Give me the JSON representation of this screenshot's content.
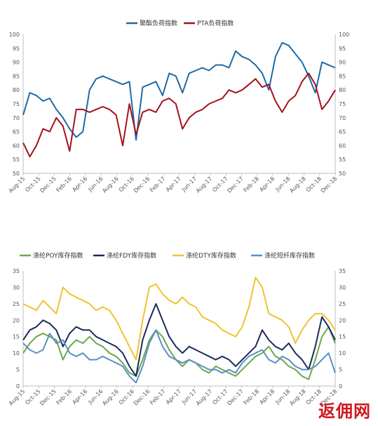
{
  "chart_data": [
    {
      "type": "line",
      "ylim": [
        50,
        100
      ],
      "yticks": [
        50,
        55,
        60,
        65,
        70,
        75,
        80,
        85,
        90,
        95,
        100
      ],
      "x_tick_labels": [
        "Aug-15",
        "Oct-15",
        "Dec-15",
        "Feb-16",
        "Apr-16",
        "Jun-16",
        "Aug-16",
        "Oct-16",
        "Dec-16",
        "Feb-17",
        "Apr-17",
        "Jun-17",
        "Aug-17",
        "Oct-17",
        "Dec-17",
        "Feb-18",
        "Apr-18",
        "Jun-18",
        "Aug-18",
        "Oct-18",
        "Dec-18"
      ],
      "legend_position": "top-center",
      "series": [
        {
          "name": "聚酯负荷指数",
          "color": "#1f6aa5",
          "values": [
            71,
            79,
            78,
            76,
            77,
            73,
            70,
            66,
            63,
            65,
            80,
            84,
            85,
            84,
            83,
            82,
            83,
            62,
            81,
            82,
            83,
            78,
            86,
            85,
            79,
            86,
            87,
            88,
            87,
            89,
            89,
            88,
            94,
            92,
            91,
            89,
            86,
            80,
            92,
            97,
            96,
            93,
            90,
            85,
            79,
            90,
            89,
            88
          ]
        },
        {
          "name": "PTA负荷指数",
          "color": "#a3121c",
          "values": [
            61,
            56,
            60,
            66,
            65,
            70,
            67,
            58,
            73,
            73,
            72,
            73,
            74,
            73,
            71,
            60,
            75,
            64,
            72,
            73,
            72,
            76,
            77,
            75,
            66,
            70,
            72,
            73,
            75,
            76,
            77,
            80,
            79,
            80,
            82,
            84,
            81,
            82,
            76,
            72,
            76,
            78,
            83,
            86,
            82,
            73,
            76,
            80
          ]
        }
      ]
    },
    {
      "type": "line",
      "ylim": [
        0,
        35
      ],
      "yticks": [
        0,
        5,
        10,
        15,
        20,
        25,
        30,
        35
      ],
      "x_tick_labels": [
        "Aug-15",
        "Oct-15",
        "Dec-15",
        "Feb-16",
        "Apr-16",
        "Jun-16",
        "Aug-16",
        "Oct-16",
        "Dec-16",
        "Feb-17",
        "Apr-17",
        "Jun-17",
        "Aug-17",
        "Oct-17",
        "Dec-17",
        "Feb-18",
        "Apr-18",
        "Jun-18",
        "Aug-18",
        "Oct-18",
        "Dec-18"
      ],
      "legend_position": "top",
      "series": [
        {
          "name": "涤纶POY库存指数",
          "color": "#6aa84f",
          "values": [
            10,
            13,
            15,
            16,
            15,
            14,
            8,
            12,
            14,
            13,
            15,
            13,
            12,
            10,
            9,
            7,
            4,
            3,
            8,
            14,
            17,
            15,
            11,
            8,
            6,
            8,
            7,
            5,
            4,
            6,
            5,
            4,
            3,
            5,
            7,
            9,
            10,
            12,
            9,
            8,
            6,
            5,
            3,
            2,
            8,
            15,
            18,
            13
          ]
        },
        {
          "name": "涤纶FDY库存指数",
          "color": "#1c2b5a",
          "values": [
            14,
            17,
            18,
            20,
            19,
            17,
            12,
            16,
            18,
            17,
            17,
            15,
            14,
            13,
            12,
            10,
            6,
            3,
            14,
            20,
            25,
            20,
            15,
            12,
            10,
            12,
            11,
            10,
            9,
            8,
            9,
            8,
            6,
            8,
            10,
            12,
            17,
            14,
            12,
            11,
            13,
            10,
            8,
            5,
            12,
            21,
            18,
            14
          ]
        },
        {
          "name": "涤纶DTY库存指数",
          "color": "#f1c232",
          "values": [
            25,
            24,
            23,
            26,
            24,
            22,
            30,
            28,
            27,
            26,
            25,
            23,
            24,
            23,
            20,
            16,
            12,
            8,
            20,
            30,
            31,
            28,
            26,
            25,
            27,
            25,
            24,
            21,
            20,
            19,
            17,
            16,
            15,
            18,
            24,
            33,
            30,
            22,
            21,
            20,
            18,
            13,
            17,
            20,
            22,
            22,
            20,
            17
          ]
        },
        {
          "name": "涤纶短纤库存指数",
          "color": "#5b8fc4",
          "values": [
            13,
            11,
            10,
            11,
            16,
            13,
            14,
            10,
            9,
            10,
            8,
            8,
            9,
            8,
            7,
            6,
            3,
            1,
            6,
            13,
            17,
            12,
            9,
            8,
            7,
            8,
            7,
            6,
            5,
            5,
            4,
            5,
            4,
            7,
            9,
            10,
            11,
            8,
            7,
            9,
            8,
            6,
            5,
            5,
            6,
            8,
            10,
            4
          ]
        }
      ]
    }
  ],
  "watermark": "返佣网"
}
